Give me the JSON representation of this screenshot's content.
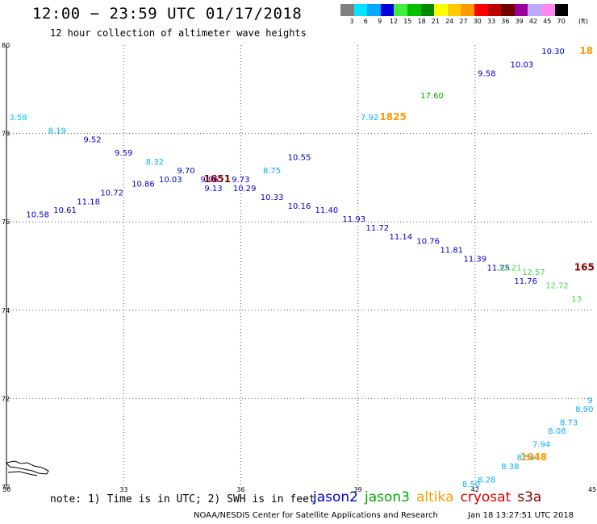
{
  "header": {
    "title": "12:00 − 23:59 UTC 01/17/2018",
    "subtitle": "12 hour collection of altimeter wave heights"
  },
  "colorbar": {
    "colors": [
      "#808080",
      "#00e5ff",
      "#00aaff",
      "#0000dd",
      "#40ee40",
      "#00c000",
      "#008800",
      "#ffff00",
      "#ffcc00",
      "#ff9900",
      "#ff0000",
      "#bb0000",
      "#700000",
      "#990099",
      "#bbaaff",
      "#ff88ee",
      "#000000"
    ],
    "labels": [
      "3",
      "6",
      "9",
      "12",
      "15",
      "18",
      "21",
      "24",
      "27",
      "30",
      "33",
      "36",
      "39",
      "42",
      "45",
      "70"
    ],
    "unit": "(ft)"
  },
  "axes": {
    "lat_labels": [
      "80",
      "78",
      "76",
      "74",
      "72",
      "70"
    ],
    "lon_labels": [
      "30",
      "33",
      "36",
      "39",
      "42",
      "45"
    ]
  },
  "chart_data": {
    "type": "map",
    "lat_range": [
      70,
      80
    ],
    "lon_range": [
      30,
      45
    ],
    "grid": "dotted",
    "points": [
      {
        "lon": 30.3,
        "lat": 78.3,
        "v": "3.58",
        "c": "#00c8ff"
      },
      {
        "lon": 31.3,
        "lat": 78.0,
        "v": "8.19",
        "c": "#00b0ff"
      },
      {
        "lon": 32.2,
        "lat": 77.8,
        "v": "9.52",
        "c": "#0000cc"
      },
      {
        "lon": 33.0,
        "lat": 77.5,
        "v": "9.59",
        "c": "#0000cc"
      },
      {
        "lon": 33.8,
        "lat": 77.3,
        "v": "8.32",
        "c": "#00b0ff"
      },
      {
        "lon": 34.6,
        "lat": 77.1,
        "v": "9.70",
        "c": "#0000cc"
      },
      {
        "lon": 35.2,
        "lat": 76.9,
        "v": "9.96",
        "c": "#0000cc"
      },
      {
        "lon": 35.3,
        "lat": 76.7,
        "v": "9.13",
        "c": "#0000cc"
      },
      {
        "lon": 36.0,
        "lat": 76.9,
        "v": "9.73",
        "c": "#0000cc"
      },
      {
        "lon": 36.8,
        "lat": 77.1,
        "v": "8.75",
        "c": "#00b0ff"
      },
      {
        "lon": 37.5,
        "lat": 77.4,
        "v": "10.55",
        "c": "#0000cc"
      },
      {
        "lon": 30.8,
        "lat": 76.1,
        "v": "10.58",
        "c": "#0000cc"
      },
      {
        "lon": 31.5,
        "lat": 76.2,
        "v": "10.61",
        "c": "#0000cc"
      },
      {
        "lon": 32.1,
        "lat": 76.4,
        "v": "11.18",
        "c": "#0000cc"
      },
      {
        "lon": 32.7,
        "lat": 76.6,
        "v": "10.72",
        "c": "#0000cc"
      },
      {
        "lon": 33.5,
        "lat": 76.8,
        "v": "10.86",
        "c": "#0000cc"
      },
      {
        "lon": 34.2,
        "lat": 76.9,
        "v": "10.03",
        "c": "#0000cc"
      },
      {
        "lon": 36.1,
        "lat": 76.7,
        "v": "10.29",
        "c": "#0000cc"
      },
      {
        "lon": 36.8,
        "lat": 76.5,
        "v": "10.33",
        "c": "#0000cc"
      },
      {
        "lon": 37.5,
        "lat": 76.3,
        "v": "10.16",
        "c": "#0000cc"
      },
      {
        "lon": 38.2,
        "lat": 76.2,
        "v": "11.40",
        "c": "#0000cc"
      },
      {
        "lon": 38.9,
        "lat": 76.0,
        "v": "11.93",
        "c": "#0000cc"
      },
      {
        "lon": 39.5,
        "lat": 75.8,
        "v": "11.72",
        "c": "#0000cc"
      },
      {
        "lon": 40.1,
        "lat": 75.6,
        "v": "11.14",
        "c": "#0000cc"
      },
      {
        "lon": 40.8,
        "lat": 75.5,
        "v": "10.76",
        "c": "#0000cc"
      },
      {
        "lon": 41.4,
        "lat": 75.3,
        "v": "11.81",
        "c": "#0000cc"
      },
      {
        "lon": 42.0,
        "lat": 75.1,
        "v": "11.39",
        "c": "#0000cc"
      },
      {
        "lon": 42.6,
        "lat": 74.9,
        "v": "11.25",
        "c": "#0000cc"
      },
      {
        "lon": 43.3,
        "lat": 74.6,
        "v": "11.76",
        "c": "#0000cc"
      },
      {
        "lon": 39.3,
        "lat": 78.3,
        "v": "7.92",
        "c": "#00b0ff"
      },
      {
        "lon": 40.9,
        "lat": 78.8,
        "v": "17.60",
        "c": "#00aa00"
      },
      {
        "lon": 42.3,
        "lat": 79.3,
        "v": "9.58",
        "c": "#0000cc"
      },
      {
        "lon": 43.2,
        "lat": 79.5,
        "v": "10.03",
        "c": "#0000cc"
      },
      {
        "lon": 44.0,
        "lat": 79.8,
        "v": "10.30",
        "c": "#0000cc"
      },
      {
        "lon": 42.9,
        "lat": 74.9,
        "v": "12.21",
        "c": "#40dd40"
      },
      {
        "lon": 43.5,
        "lat": 74.8,
        "v": "12.57",
        "c": "#40dd40"
      },
      {
        "lon": 44.1,
        "lat": 74.5,
        "v": "12.72",
        "c": "#40dd40"
      },
      {
        "lon": 44.6,
        "lat": 74.2,
        "v": "13",
        "c": "#40dd40"
      },
      {
        "lon": 41.9,
        "lat": 70.0,
        "v": "8.50",
        "c": "#00b0ff"
      },
      {
        "lon": 42.3,
        "lat": 70.1,
        "v": "8.28",
        "c": "#00b0ff"
      },
      {
        "lon": 42.9,
        "lat": 70.4,
        "v": "8.38",
        "c": "#00b0ff"
      },
      {
        "lon": 43.3,
        "lat": 70.6,
        "v": "8.54",
        "c": "#00b0ff"
      },
      {
        "lon": 43.7,
        "lat": 70.9,
        "v": "7.94",
        "c": "#00b0ff"
      },
      {
        "lon": 44.1,
        "lat": 71.2,
        "v": "8.08",
        "c": "#00b0ff"
      },
      {
        "lon": 44.4,
        "lat": 71.4,
        "v": "8.73",
        "c": "#00b0ff"
      },
      {
        "lon": 44.8,
        "lat": 71.7,
        "v": "8.90",
        "c": "#00b0ff"
      },
      {
        "lon": 44.95,
        "lat": 71.9,
        "v": "9",
        "c": "#00b0ff"
      }
    ],
    "time_labels": [
      {
        "lon": 35.4,
        "lat": 76.9,
        "t": "1651",
        "c": "#880000"
      },
      {
        "lon": 39.9,
        "lat": 78.3,
        "t": "1825",
        "c": "#ff9900"
      },
      {
        "lon": 44.85,
        "lat": 79.8,
        "t": "18",
        "c": "#ff9900"
      },
      {
        "lon": 44.8,
        "lat": 74.9,
        "t": "165",
        "c": "#880000"
      },
      {
        "lon": 43.5,
        "lat": 70.6,
        "t": "1648",
        "c": "#ff9900"
      }
    ]
  },
  "note": "note: 1) Time is in UTC; 2) SWH is in feet",
  "legend": [
    {
      "label": "jason2",
      "color": "#0000cc"
    },
    {
      "label": "jason3",
      "color": "#00aa00"
    },
    {
      "label": "altika",
      "color": "#ff9900"
    },
    {
      "label": "cryosat",
      "color": "#dd0000"
    },
    {
      "label": "s3a",
      "color": "#880000"
    }
  ],
  "footer": {
    "left": "NOAA/NESDIS Center for Satellite Applications and Research",
    "right": "Jan 18 13:27:51 UTC 2018"
  }
}
